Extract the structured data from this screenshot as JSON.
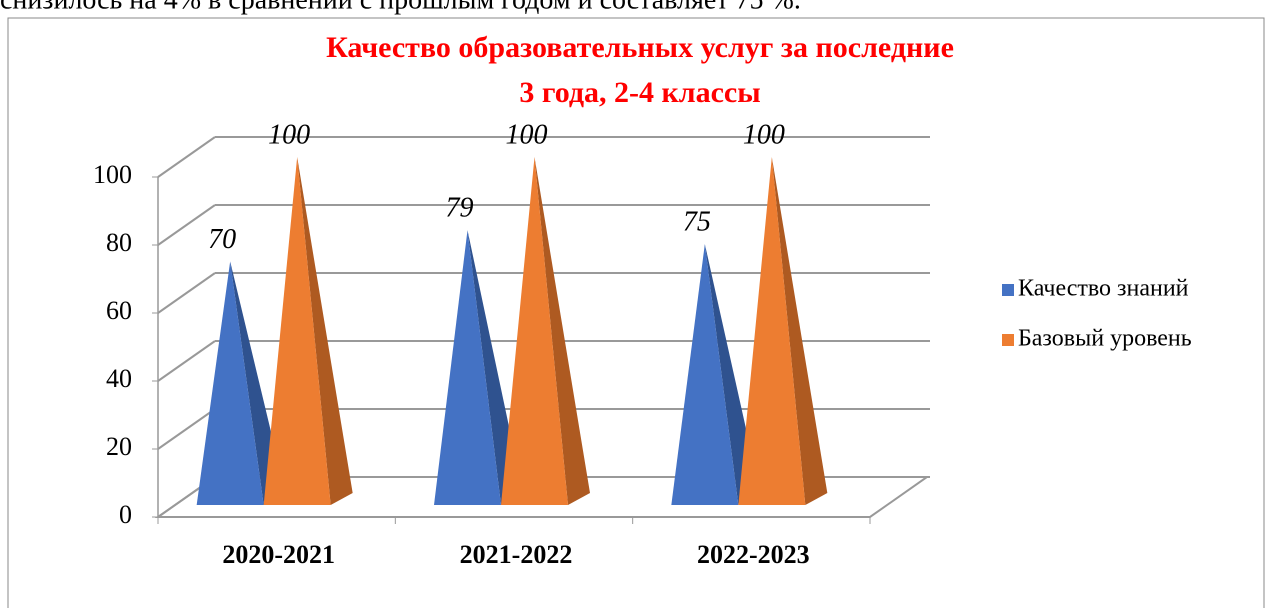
{
  "intro_text": "снизилось на 4% в сравнении с прошлым годом и составляет 75 %.",
  "chart_data": {
    "type": "pyramid3d",
    "title": [
      "Качество образовательных услуг за последние",
      "3 года,  2-4 классы"
    ],
    "categories": [
      "2020-2021",
      "2021-2022",
      "2022-2023"
    ],
    "series": [
      {
        "name": "Качество знаний",
        "color": "#4472c4",
        "side_color": "#2f528f",
        "values": [
          70,
          79,
          75
        ]
      },
      {
        "name": "Базовый уровень",
        "color": "#ed7d31",
        "side_color": "#ae5a21",
        "values": [
          100,
          100,
          100
        ]
      }
    ],
    "ylim": [
      0,
      100
    ],
    "yticks": [
      0,
      20,
      40,
      60,
      80,
      100
    ],
    "grid": true,
    "legend": "right"
  }
}
